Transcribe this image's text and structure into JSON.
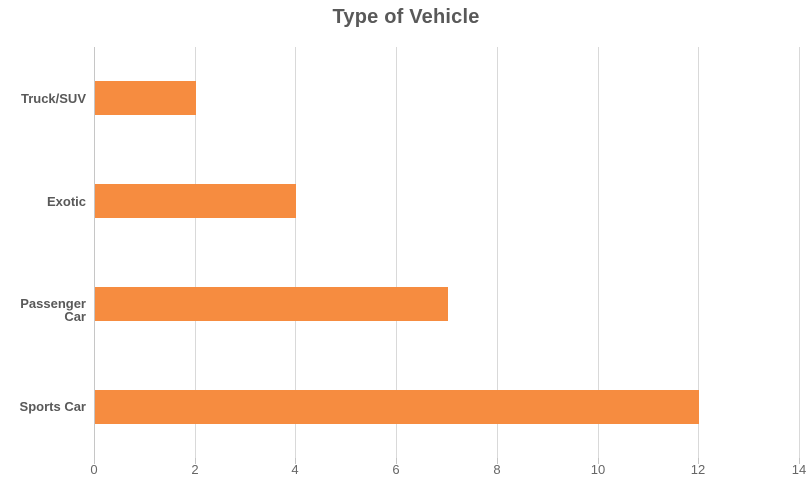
{
  "chart_data": {
    "type": "bar",
    "orientation": "horizontal",
    "title": "Type of Vehicle",
    "categories": [
      "Truck/SUV",
      "Exotic",
      "Passenger Car",
      "Sports Car"
    ],
    "values": [
      2,
      4,
      7,
      12
    ],
    "xlabel": "",
    "ylabel": "",
    "xlim": [
      0,
      14
    ],
    "xticks": [
      0,
      2,
      4,
      6,
      8,
      10,
      12,
      14
    ],
    "grid": "vertical-only",
    "legend": "none",
    "colors": {
      "bar": "#f68c40",
      "gridline": "#d9d9d9",
      "axis_line": "#c6c6c6",
      "title_text": "#595959",
      "category_text": "#595959",
      "tick_text": "#666666",
      "background": "#ffffff"
    }
  }
}
